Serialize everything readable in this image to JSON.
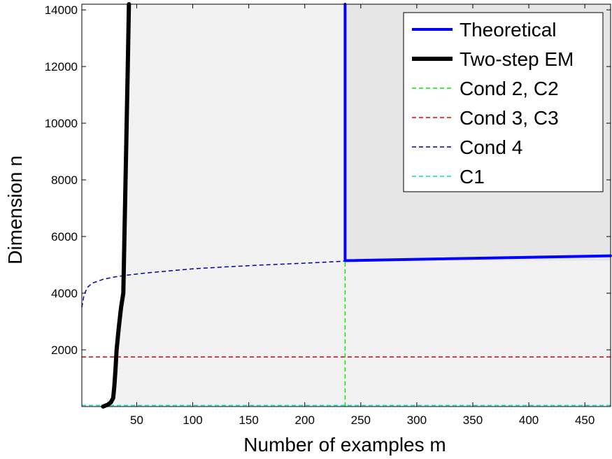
{
  "chart_data": {
    "type": "line",
    "xlabel": "Number of examples m",
    "ylabel": "Dimension n",
    "xlim": [
      1,
      473
    ],
    "ylim": [
      0,
      14200
    ],
    "xticks": [
      50,
      100,
      150,
      200,
      250,
      300,
      350,
      400,
      450
    ],
    "yticks": [
      2000,
      4000,
      6000,
      8000,
      10000,
      12000,
      14000
    ],
    "grid": false,
    "legend_position": "top-right",
    "regions": [
      {
        "name": "region-below-em",
        "fill": "#f2f2f2",
        "description": "area right of Two-step EM curve"
      },
      {
        "name": "region-theoretical",
        "fill": "#e6e6e6",
        "x_from": 236,
        "y_from": 5150
      }
    ],
    "series": [
      {
        "name": "Theoretical",
        "color": "#0000ff",
        "style": "solid",
        "width": 4,
        "x": [
          236,
          236,
          473
        ],
        "y": [
          14200,
          5150,
          5320
        ]
      },
      {
        "name": "Two-step EM",
        "color": "#000000",
        "style": "solid",
        "width": 6,
        "x": [
          20,
          24,
          27,
          29,
          30,
          31,
          32,
          34,
          36,
          38,
          39,
          40,
          41,
          42,
          43
        ],
        "y": [
          0,
          60,
          150,
          300,
          700,
          1300,
          2000,
          2800,
          3500,
          4000,
          6000,
          8000,
          10000,
          12000,
          14200
        ]
      },
      {
        "name": "Cond 2, C2",
        "color": "#00ee00",
        "style": "dashed",
        "width": 1.5,
        "x": [
          236,
          236
        ],
        "y": [
          0,
          5150
        ]
      },
      {
        "name": "Cond 3, C3",
        "color": "#dd0000",
        "style": "dashed",
        "width": 1.5,
        "x": [
          1,
          473
        ],
        "y": [
          1750,
          1750
        ]
      },
      {
        "name": "Cond 4",
        "color": "#0000aa",
        "style": "dashed",
        "width": 1.5,
        "x": [
          1,
          3,
          6,
          10,
          20,
          30,
          40,
          60,
          80,
          100,
          130,
          160,
          200,
          236
        ],
        "y": [
          3500,
          3950,
          4200,
          4350,
          4490,
          4570,
          4630,
          4720,
          4790,
          4860,
          4930,
          4990,
          5060,
          5130
        ]
      },
      {
        "name": "C1",
        "color": "#00dddd",
        "style": "dashed",
        "width": 1.5,
        "x": [
          1,
          473
        ],
        "y": [
          40,
          40
        ]
      }
    ]
  }
}
